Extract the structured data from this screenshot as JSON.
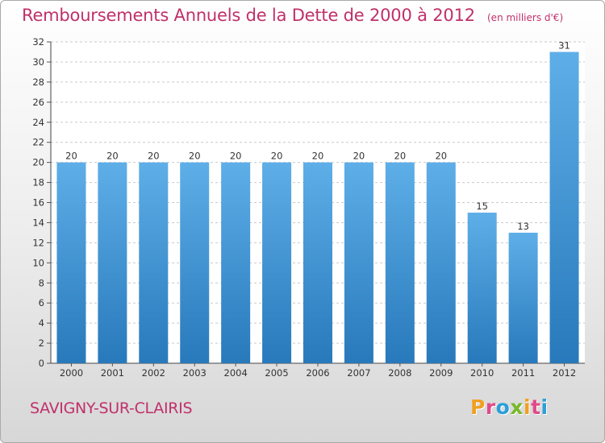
{
  "chart_data": {
    "type": "bar",
    "title": "Remboursements Annuels de la Dette de 2000 à 2012",
    "unit": "(en milliers d'€)",
    "categories": [
      "2000",
      "2001",
      "2002",
      "2003",
      "2004",
      "2005",
      "2006",
      "2007",
      "2008",
      "2009",
      "2010",
      "2011",
      "2012"
    ],
    "values": [
      20,
      20,
      20,
      20,
      20,
      20,
      20,
      20,
      20,
      20,
      15,
      13,
      31
    ],
    "ylim": [
      0,
      32
    ],
    "yticks": [
      0,
      2,
      4,
      6,
      8,
      10,
      12,
      14,
      16,
      18,
      20,
      22,
      24,
      26,
      28,
      30,
      32
    ],
    "grid": true,
    "legend": "none"
  },
  "commune": "SAVIGNY-SUR-CLAIRIS",
  "brand": {
    "letters": [
      "P",
      "r",
      "o",
      "x",
      "i",
      "t",
      "i"
    ],
    "colors": [
      "#f0a020",
      "#e04a8a",
      "#2a9fd8",
      "#78b82a",
      "#f0a020",
      "#e04a8a",
      "#2a9fd8"
    ]
  },
  "colors": {
    "bar_top": "#5eaee8",
    "bar_bottom": "#2879bb",
    "accent": "#c0306a"
  }
}
